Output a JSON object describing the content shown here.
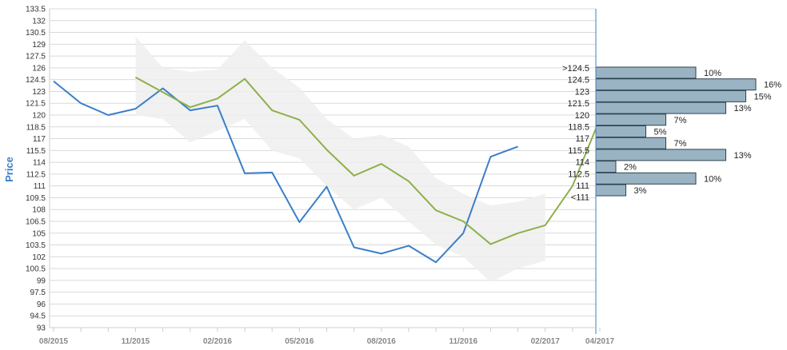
{
  "chart_data": {
    "type": "line",
    "ylabel": "Price",
    "ylim": [
      93,
      133.5
    ],
    "y_ticks": [
      "133.5",
      "132",
      "130.5",
      "129",
      "127.5",
      "126",
      "124.5",
      "123",
      "121.5",
      "120",
      "118.5",
      "117",
      "115.5",
      "114",
      "112.5",
      "111",
      "109.5",
      "108",
      "106.5",
      "105",
      "103.5",
      "102",
      "100.5",
      "99",
      "97.5",
      "96",
      "94.5",
      "93"
    ],
    "x_ticks": [
      "08/2015",
      "11/2015",
      "02/2016",
      "05/2016",
      "08/2016",
      "11/2016",
      "02/2017",
      "04/2017"
    ],
    "grid": true,
    "series": [
      {
        "type": "line",
        "color": "#3a7fc8",
        "x": [
          "2015-08",
          "2015-09",
          "2015-10",
          "2015-11",
          "2015-12",
          "2016-01",
          "2016-02",
          "2016-03",
          "2016-04",
          "2016-05",
          "2016-06",
          "2016-07",
          "2016-08",
          "2016-09",
          "2016-10",
          "2016-11",
          "2016-12",
          "2017-01",
          "2017-02"
        ],
        "values": [
          124.3,
          121.5,
          120.0,
          120.8,
          123.4,
          120.6,
          121.2,
          112.6,
          112.7,
          106.4,
          110.9,
          103.2,
          102.4,
          103.4,
          101.3,
          105.0,
          114.7,
          116.0,
          null
        ]
      },
      {
        "type": "line",
        "color": "#8db04a",
        "x": [
          "2015-11",
          "2015-12",
          "2016-01",
          "2016-02",
          "2016-03",
          "2016-04",
          "2016-05",
          "2016-06",
          "2016-07",
          "2016-08",
          "2016-09",
          "2016-10",
          "2016-11",
          "2016-12",
          "2017-01",
          "2017-02",
          "2017-03",
          "2017-04"
        ],
        "values": [
          124.8,
          122.9,
          121.0,
          122.1,
          124.6,
          120.6,
          119.4,
          115.6,
          112.3,
          113.8,
          111.6,
          107.9,
          106.5,
          103.6,
          105.0,
          106.0,
          111.0,
          119.5
        ]
      },
      {
        "type": "area",
        "color": "#eeeeee",
        "x": [
          "2015-11",
          "2015-12",
          "2016-01",
          "2016-02",
          "2016-03",
          "2016-04",
          "2016-05",
          "2016-06",
          "2016-07",
          "2016-08",
          "2016-09",
          "2016-10",
          "2016-11",
          "2016-12",
          "2017-01",
          "2017-02"
        ],
        "upper": [
          130.0,
          126.0,
          125.5,
          125.8,
          129.5,
          126.0,
          123.5,
          119.5,
          117.0,
          117.5,
          116.0,
          112.0,
          110.0,
          108.5,
          109.0,
          110.0
        ],
        "lower": [
          120.0,
          119.5,
          116.5,
          118.0,
          119.5,
          115.5,
          114.5,
          111.0,
          108.0,
          109.5,
          106.5,
          103.5,
          102.0,
          98.8,
          100.5,
          101.5
        ]
      }
    ],
    "histogram": {
      "bins": [
        ">124.5",
        "124.5",
        "123",
        "121.5",
        "120",
        "118.5",
        "117",
        "115.5",
        "114",
        "112.5",
        "111",
        "<111"
      ],
      "values": [
        10,
        16,
        15,
        13,
        7,
        5,
        7,
        13,
        2,
        10,
        3,
        null
      ],
      "labels": [
        "10%",
        "16%",
        "15%",
        "13%",
        "7%",
        "5%",
        "7%",
        "13%",
        "2%",
        "10%",
        "3%",
        ""
      ],
      "color": "#9ab3c3",
      "border_color": "#2d4250"
    }
  }
}
